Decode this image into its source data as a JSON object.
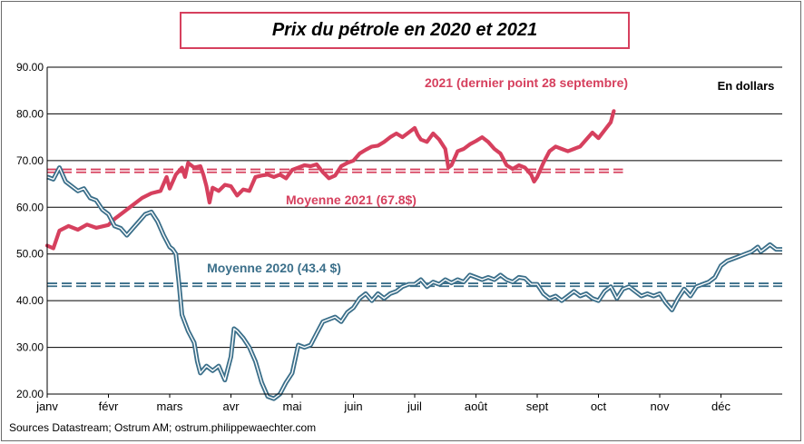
{
  "title": "Prix du pétrole en 2020 et 2021",
  "source": "Sources Datastream; Ostrum AM; ostrum.philippewaechter.com",
  "colors": {
    "series_2021": "#d6405e",
    "series_2020": "#3b6f8a",
    "frame": "#6b6b6b",
    "grid": "#000000"
  },
  "chart_data": {
    "type": "line",
    "title": "Prix du pétrole en 2020 et 2021",
    "unit_label": "En dollars",
    "ylim": [
      20,
      90
    ],
    "y_ticks": [
      "20.00",
      "30.00",
      "40.00",
      "50.00",
      "60.00",
      "70.00",
      "80.00",
      "90.00"
    ],
    "x_ticks": [
      "janv",
      "févr",
      "mars",
      "avr",
      "mai",
      "juin",
      "juil",
      "août",
      "sept",
      "oct",
      "nov",
      "déc"
    ],
    "grid": "horizontal",
    "series": [
      {
        "name": "2021 (dernier point 28 septembre)",
        "style": "thick",
        "points": [
          [
            0.0,
            51.8
          ],
          [
            0.1,
            51.2
          ],
          [
            0.2,
            55.0
          ],
          [
            0.35,
            56.0
          ],
          [
            0.5,
            55.2
          ],
          [
            0.65,
            56.3
          ],
          [
            0.8,
            55.6
          ],
          [
            1.0,
            56.2
          ],
          [
            1.1,
            57.5
          ],
          [
            1.25,
            59.0
          ],
          [
            1.4,
            60.5
          ],
          [
            1.55,
            62.0
          ],
          [
            1.7,
            63.0
          ],
          [
            1.85,
            63.5
          ],
          [
            1.95,
            66.5
          ],
          [
            2.0,
            64.0
          ],
          [
            2.1,
            67.0
          ],
          [
            2.2,
            68.5
          ],
          [
            2.25,
            66.5
          ],
          [
            2.3,
            69.5
          ],
          [
            2.4,
            68.5
          ],
          [
            2.5,
            68.8
          ],
          [
            2.55,
            67.0
          ],
          [
            2.6,
            64.5
          ],
          [
            2.65,
            61.0
          ],
          [
            2.7,
            64.2
          ],
          [
            2.8,
            63.5
          ],
          [
            2.9,
            64.8
          ],
          [
            3.0,
            64.5
          ],
          [
            3.1,
            62.5
          ],
          [
            3.2,
            63.8
          ],
          [
            3.3,
            63.5
          ],
          [
            3.4,
            66.5
          ],
          [
            3.5,
            66.8
          ],
          [
            3.6,
            67.0
          ],
          [
            3.7,
            66.5
          ],
          [
            3.8,
            67.0
          ],
          [
            3.9,
            66.2
          ],
          [
            4.0,
            68.0
          ],
          [
            4.1,
            68.5
          ],
          [
            4.2,
            69.0
          ],
          [
            4.3,
            68.8
          ],
          [
            4.4,
            69.2
          ],
          [
            4.5,
            67.5
          ],
          [
            4.6,
            66.2
          ],
          [
            4.7,
            66.8
          ],
          [
            4.8,
            68.8
          ],
          [
            4.9,
            69.5
          ],
          [
            5.0,
            70.0
          ],
          [
            5.1,
            71.5
          ],
          [
            5.2,
            72.3
          ],
          [
            5.3,
            73.0
          ],
          [
            5.4,
            73.2
          ],
          [
            5.5,
            74.0
          ],
          [
            5.6,
            75.0
          ],
          [
            5.7,
            75.8
          ],
          [
            5.8,
            75.0
          ],
          [
            5.9,
            76.0
          ],
          [
            6.0,
            77.0
          ],
          [
            6.05,
            75.5
          ],
          [
            6.1,
            74.5
          ],
          [
            6.2,
            74.0
          ],
          [
            6.3,
            75.8
          ],
          [
            6.4,
            74.5
          ],
          [
            6.5,
            72.5
          ],
          [
            6.55,
            68.5
          ],
          [
            6.6,
            69.0
          ],
          [
            6.7,
            72.0
          ],
          [
            6.8,
            72.5
          ],
          [
            6.9,
            73.5
          ],
          [
            7.0,
            74.2
          ],
          [
            7.1,
            75.0
          ],
          [
            7.2,
            74.0
          ],
          [
            7.3,
            72.5
          ],
          [
            7.4,
            71.5
          ],
          [
            7.5,
            69.0
          ],
          [
            7.6,
            68.2
          ],
          [
            7.7,
            69.0
          ],
          [
            7.8,
            68.5
          ],
          [
            7.9,
            67.0
          ],
          [
            7.95,
            65.5
          ],
          [
            8.0,
            66.5
          ],
          [
            8.1,
            69.5
          ],
          [
            8.2,
            72.0
          ],
          [
            8.3,
            73.0
          ],
          [
            8.4,
            72.5
          ],
          [
            8.5,
            72.0
          ],
          [
            8.6,
            72.5
          ],
          [
            8.7,
            73.0
          ],
          [
            8.8,
            74.5
          ],
          [
            8.9,
            76.0
          ],
          [
            9.0,
            74.8
          ],
          [
            9.1,
            76.5
          ],
          [
            9.2,
            78.2
          ],
          [
            9.25,
            80.6
          ]
        ]
      },
      {
        "name": "2020",
        "style": "double",
        "points": [
          [
            0.0,
            66.5
          ],
          [
            0.1,
            66.0
          ],
          [
            0.2,
            68.5
          ],
          [
            0.3,
            65.5
          ],
          [
            0.4,
            64.5
          ],
          [
            0.5,
            63.5
          ],
          [
            0.6,
            64.0
          ],
          [
            0.7,
            62.0
          ],
          [
            0.8,
            61.5
          ],
          [
            0.9,
            59.5
          ],
          [
            1.0,
            58.5
          ],
          [
            1.1,
            56.0
          ],
          [
            1.2,
            55.5
          ],
          [
            1.3,
            54.0
          ],
          [
            1.4,
            55.5
          ],
          [
            1.5,
            57.0
          ],
          [
            1.6,
            58.5
          ],
          [
            1.7,
            59.0
          ],
          [
            1.8,
            57.0
          ],
          [
            1.9,
            54.0
          ],
          [
            2.0,
            51.5
          ],
          [
            2.05,
            51.0
          ],
          [
            2.1,
            50.0
          ],
          [
            2.15,
            44.0
          ],
          [
            2.2,
            37.0
          ],
          [
            2.3,
            33.5
          ],
          [
            2.4,
            31.0
          ],
          [
            2.45,
            27.0
          ],
          [
            2.5,
            24.5
          ],
          [
            2.6,
            26.0
          ],
          [
            2.7,
            25.0
          ],
          [
            2.8,
            26.0
          ],
          [
            2.9,
            23.0
          ],
          [
            3.0,
            28.0
          ],
          [
            3.05,
            34.0
          ],
          [
            3.1,
            33.5
          ],
          [
            3.2,
            32.0
          ],
          [
            3.3,
            30.0
          ],
          [
            3.4,
            27.0
          ],
          [
            3.5,
            22.5
          ],
          [
            3.6,
            19.5
          ],
          [
            3.7,
            19.0
          ],
          [
            3.8,
            20.0
          ],
          [
            3.9,
            22.5
          ],
          [
            4.0,
            24.5
          ],
          [
            4.1,
            30.5
          ],
          [
            4.2,
            30.0
          ],
          [
            4.3,
            30.5
          ],
          [
            4.4,
            33.0
          ],
          [
            4.5,
            35.5
          ],
          [
            4.6,
            36.0
          ],
          [
            4.7,
            36.5
          ],
          [
            4.8,
            35.5
          ],
          [
            4.9,
            37.5
          ],
          [
            5.0,
            38.5
          ],
          [
            5.1,
            40.5
          ],
          [
            5.2,
            41.5
          ],
          [
            5.3,
            40.0
          ],
          [
            5.4,
            41.5
          ],
          [
            5.5,
            40.5
          ],
          [
            5.6,
            41.5
          ],
          [
            5.7,
            42.0
          ],
          [
            5.8,
            43.0
          ],
          [
            5.9,
            43.5
          ],
          [
            6.0,
            43.5
          ],
          [
            6.1,
            44.5
          ],
          [
            6.2,
            43.0
          ],
          [
            6.3,
            44.0
          ],
          [
            6.4,
            43.5
          ],
          [
            6.5,
            44.5
          ],
          [
            6.6,
            43.8
          ],
          [
            6.7,
            44.5
          ],
          [
            6.8,
            44.0
          ],
          [
            6.9,
            45.5
          ],
          [
            7.0,
            45.0
          ],
          [
            7.1,
            44.5
          ],
          [
            7.2,
            45.0
          ],
          [
            7.3,
            44.5
          ],
          [
            7.4,
            45.5
          ],
          [
            7.5,
            44.5
          ],
          [
            7.6,
            44.0
          ],
          [
            7.7,
            45.0
          ],
          [
            7.8,
            44.8
          ],
          [
            7.9,
            43.5
          ],
          [
            8.0,
            43.5
          ],
          [
            8.1,
            41.5
          ],
          [
            8.2,
            40.5
          ],
          [
            8.3,
            41.0
          ],
          [
            8.4,
            40.0
          ],
          [
            8.5,
            41.0
          ],
          [
            8.6,
            42.0
          ],
          [
            8.7,
            41.0
          ],
          [
            8.8,
            41.5
          ],
          [
            8.9,
            40.5
          ],
          [
            9.0,
            40.0
          ],
          [
            9.1,
            42.0
          ],
          [
            9.2,
            43.0
          ],
          [
            9.3,
            40.5
          ],
          [
            9.4,
            42.5
          ],
          [
            9.5,
            43.0
          ],
          [
            9.6,
            42.0
          ],
          [
            9.7,
            41.0
          ],
          [
            9.8,
            41.5
          ],
          [
            9.9,
            41.0
          ],
          [
            10.0,
            41.5
          ],
          [
            10.1,
            39.5
          ],
          [
            10.2,
            38.0
          ],
          [
            10.3,
            40.5
          ],
          [
            10.4,
            42.5
          ],
          [
            10.5,
            41.0
          ],
          [
            10.6,
            43.0
          ],
          [
            10.7,
            43.5
          ],
          [
            10.8,
            44.0
          ],
          [
            10.9,
            45.0
          ],
          [
            11.0,
            47.5
          ],
          [
            11.1,
            48.5
          ],
          [
            11.2,
            49.0
          ],
          [
            11.3,
            49.5
          ],
          [
            11.4,
            50.0
          ],
          [
            11.5,
            50.5
          ],
          [
            11.6,
            51.5
          ],
          [
            11.65,
            50.5
          ],
          [
            11.7,
            51.0
          ],
          [
            11.8,
            52.0
          ],
          [
            11.9,
            51.0
          ],
          [
            12.0,
            51.0
          ]
        ]
      }
    ],
    "reference_lines": [
      {
        "name": "Moyenne 2021 (67.8$)",
        "value": 67.8,
        "x_end": 9.4,
        "color": "#d6405e"
      },
      {
        "name": "Moyenne 2020 (43.4 $)",
        "value": 43.4,
        "x_end": 12.0,
        "color": "#3b6f8a"
      }
    ]
  }
}
